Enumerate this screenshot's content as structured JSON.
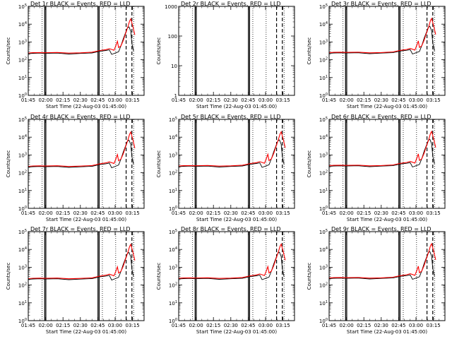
{
  "figure": {
    "time_range": [
      "01:45",
      "03:25"
    ],
    "tick_labels": [
      "01:45",
      "02:00",
      "02:15",
      "02:30",
      "02:45",
      "03:00",
      "03:15"
    ],
    "tick_minutes": [
      0,
      15,
      30,
      45,
      60,
      75,
      90
    ],
    "solid_lines_min": [
      14.2,
      15.2,
      60.2,
      61.2
    ],
    "dotted_lines_min": [
      12,
      64,
      75.5,
      91
    ],
    "dashed_lines_min": [
      84.5,
      89.5
    ],
    "colors": {
      "events": "#000000",
      "lld": "#ff0000",
      "axis": "#000000"
    }
  },
  "chart_data": [
    {
      "type": "line",
      "title": "Det 1r BLACK = Events, RED = LLD",
      "xlabel": "Start Time (22-Aug-03 01:45:00)",
      "ylabel": "Counts/sec",
      "scale": "log",
      "ylim": [
        1,
        100000
      ],
      "y_tick_labels": [
        "10^0",
        "10^1",
        "10^2",
        "10^3",
        "10^4",
        "10^5"
      ],
      "series": [
        {
          "name": "Events",
          "color": "#000000",
          "x": [
            0,
            4,
            10,
            14,
            18,
            25,
            35,
            45,
            55,
            62,
            67,
            70,
            72,
            76,
            78,
            80,
            82,
            84.5,
            85.5,
            87,
            88.5,
            89.5,
            91
          ],
          "y": [
            220,
            230,
            235,
            228,
            232,
            236,
            210,
            225,
            240,
            300,
            330,
            360,
            200,
            250,
            280,
            600,
            1500,
            4000,
            6000,
            7000,
            4000,
            800,
            300
          ]
        },
        {
          "name": "LLD",
          "color": "#ff0000",
          "x": [
            0,
            4,
            10,
            14,
            18,
            25,
            35,
            45,
            55,
            62,
            67,
            70,
            72,
            74,
            76,
            77,
            78,
            80,
            82,
            84,
            86,
            87.5,
            88.5,
            90,
            92
          ],
          "y": [
            240,
            250,
            255,
            248,
            252,
            256,
            235,
            245,
            265,
            330,
            370,
            420,
            380,
            340,
            700,
            1100,
            480,
            600,
            1200,
            3000,
            7000,
            15000,
            20000,
            9000,
            2500
          ]
        }
      ]
    },
    {
      "type": "line",
      "title": "Det 2r BLACK = Events, RED = LLD",
      "xlabel": "Start Time (22-Aug-03 01:45:00)",
      "ylabel": "Counts/sec",
      "scale": "log",
      "ylim": [
        1,
        1000
      ],
      "y_tick_labels": [
        "1",
        "10",
        "100",
        "1000"
      ],
      "series": []
    },
    {
      "type": "line",
      "title": "Det 3r BLACK = Events, RED = LLD",
      "xlabel": "Start Time (22-Aug-03 01:45:00)",
      "ylabel": "Counts/sec",
      "scale": "log",
      "ylim": [
        1,
        100000
      ],
      "y_tick_labels": [
        "10^0",
        "10^1",
        "10^2",
        "10^3",
        "10^4",
        "10^5"
      ],
      "series": [
        {
          "name": "Events",
          "color": "#000000",
          "x": [
            0,
            4,
            10,
            14,
            18,
            25,
            35,
            45,
            55,
            62,
            67,
            70,
            72,
            76,
            78,
            80,
            82,
            84.5,
            85.5,
            87,
            88.5,
            89.5,
            91
          ],
          "y": [
            230,
            240,
            245,
            238,
            242,
            246,
            220,
            235,
            250,
            310,
            340,
            370,
            210,
            260,
            290,
            620,
            1600,
            4200,
            6500,
            7500,
            4300,
            850,
            320
          ]
        },
        {
          "name": "LLD",
          "color": "#ff0000",
          "x": [
            0,
            4,
            10,
            14,
            18,
            25,
            35,
            45,
            55,
            62,
            67,
            70,
            72,
            74,
            76,
            77,
            78,
            80,
            82,
            84,
            86,
            87.5,
            88.5,
            90,
            92
          ],
          "y": [
            250,
            260,
            265,
            258,
            262,
            266,
            245,
            255,
            275,
            340,
            380,
            430,
            390,
            350,
            720,
            1150,
            490,
            610,
            1250,
            3100,
            7200,
            16000,
            21000,
            9500,
            2600
          ]
        }
      ]
    },
    {
      "type": "line",
      "title": "Det 4r BLACK = Events, RED = LLD",
      "xlabel": "Start Time (22-Aug-03 01:45:00)",
      "ylabel": "Counts/sec",
      "scale": "log",
      "ylim": [
        1,
        100000
      ],
      "y_tick_labels": [
        "10^0",
        "10^1",
        "10^2",
        "10^3",
        "10^4",
        "10^5"
      ],
      "series": [
        {
          "name": "Events",
          "color": "#000000",
          "x": [
            0,
            4,
            10,
            14,
            18,
            25,
            35,
            45,
            55,
            62,
            67,
            70,
            72,
            76,
            78,
            80,
            82,
            84.5,
            85.5,
            87,
            88.5,
            89.5,
            91
          ],
          "y": [
            210,
            220,
            225,
            218,
            222,
            226,
            200,
            215,
            230,
            290,
            320,
            350,
            190,
            240,
            270,
            580,
            1450,
            3900,
            5800,
            6800,
            3900,
            780,
            290
          ]
        },
        {
          "name": "LLD",
          "color": "#ff0000",
          "x": [
            0,
            4,
            10,
            14,
            18,
            25,
            35,
            45,
            55,
            62,
            67,
            70,
            72,
            74,
            76,
            77,
            78,
            80,
            82,
            84,
            86,
            87.5,
            88.5,
            90,
            92
          ],
          "y": [
            230,
            240,
            245,
            238,
            242,
            246,
            225,
            235,
            255,
            320,
            360,
            410,
            370,
            330,
            680,
            1050,
            470,
            590,
            1150,
            2900,
            6800,
            14500,
            19500,
            8800,
            2400
          ]
        }
      ]
    },
    {
      "type": "line",
      "title": "Det 5r BLACK = Events, RED = LLD",
      "xlabel": "Start Time (22-Aug-03 01:45:00)",
      "ylabel": "Counts/sec",
      "scale": "log",
      "ylim": [
        1,
        100000
      ],
      "y_tick_labels": [
        "10^0",
        "10^1",
        "10^2",
        "10^3",
        "10^4",
        "10^5"
      ],
      "series": [
        {
          "name": "Events",
          "color": "#000000",
          "x": [
            0,
            4,
            10,
            14,
            18,
            25,
            35,
            45,
            55,
            62,
            67,
            70,
            72,
            76,
            78,
            80,
            82,
            84.5,
            85.5,
            87,
            88.5,
            89.5,
            91
          ],
          "y": [
            220,
            230,
            235,
            228,
            232,
            236,
            210,
            225,
            240,
            300,
            330,
            360,
            200,
            250,
            280,
            600,
            1500,
            4000,
            6000,
            7000,
            4000,
            800,
            300
          ]
        },
        {
          "name": "LLD",
          "color": "#ff0000",
          "x": [
            0,
            4,
            10,
            14,
            18,
            25,
            35,
            45,
            55,
            62,
            67,
            70,
            72,
            74,
            76,
            77,
            78,
            80,
            82,
            84,
            86,
            87.5,
            88.5,
            90,
            92
          ],
          "y": [
            240,
            250,
            255,
            248,
            252,
            256,
            235,
            245,
            265,
            330,
            370,
            420,
            380,
            340,
            700,
            1100,
            480,
            600,
            1200,
            3000,
            7000,
            15000,
            20000,
            9000,
            2500
          ]
        }
      ]
    },
    {
      "type": "line",
      "title": "Det 6r BLACK = Events, RED = LLD",
      "xlabel": "Start Time (22-Aug-03 01:45:00)",
      "ylabel": "Counts/sec",
      "scale": "log",
      "ylim": [
        1,
        100000
      ],
      "y_tick_labels": [
        "10^0",
        "10^1",
        "10^2",
        "10^3",
        "10^4",
        "10^5"
      ],
      "series": [
        {
          "name": "Events",
          "color": "#000000",
          "x": [
            0,
            4,
            10,
            14,
            18,
            25,
            35,
            45,
            55,
            62,
            67,
            70,
            72,
            76,
            78,
            80,
            82,
            84.5,
            85.5,
            87,
            88.5,
            89.5,
            91
          ],
          "y": [
            230,
            240,
            245,
            238,
            242,
            246,
            220,
            235,
            250,
            310,
            340,
            370,
            210,
            260,
            290,
            620,
            1600,
            4200,
            6500,
            7500,
            4300,
            850,
            320
          ]
        },
        {
          "name": "LLD",
          "color": "#ff0000",
          "x": [
            0,
            4,
            10,
            14,
            18,
            25,
            35,
            45,
            55,
            62,
            67,
            70,
            72,
            74,
            76,
            77,
            78,
            80,
            82,
            84,
            86,
            87.5,
            88.5,
            90,
            92
          ],
          "y": [
            250,
            260,
            265,
            258,
            262,
            266,
            245,
            255,
            275,
            340,
            380,
            430,
            390,
            350,
            720,
            1150,
            490,
            610,
            1250,
            3100,
            7200,
            16000,
            21000,
            9500,
            2600
          ]
        }
      ]
    },
    {
      "type": "line",
      "title": "Det 7r BLACK = Events, RED = LLD",
      "xlabel": "Start Time (22-Aug-03 01:45:00)",
      "ylabel": "Counts/sec",
      "scale": "log",
      "ylim": [
        1,
        100000
      ],
      "y_tick_labels": [
        "10^0",
        "10^1",
        "10^2",
        "10^3",
        "10^4",
        "10^5"
      ],
      "series": [
        {
          "name": "Events",
          "color": "#000000",
          "x": [
            0,
            4,
            10,
            14,
            18,
            25,
            35,
            45,
            55,
            62,
            67,
            70,
            72,
            76,
            78,
            80,
            82,
            84.5,
            85.5,
            87,
            88.5,
            89.5,
            91
          ],
          "y": [
            210,
            220,
            225,
            218,
            222,
            226,
            200,
            215,
            230,
            290,
            320,
            350,
            190,
            240,
            270,
            580,
            1450,
            3900,
            5800,
            6800,
            3900,
            780,
            290
          ]
        },
        {
          "name": "LLD",
          "color": "#ff0000",
          "x": [
            0,
            4,
            10,
            14,
            18,
            25,
            35,
            45,
            55,
            62,
            67,
            70,
            72,
            74,
            76,
            77,
            78,
            80,
            82,
            84,
            86,
            87.5,
            88.5,
            90,
            92
          ],
          "y": [
            230,
            240,
            245,
            238,
            242,
            246,
            225,
            235,
            255,
            320,
            360,
            410,
            370,
            330,
            680,
            1050,
            470,
            590,
            1150,
            2900,
            6800,
            14500,
            19500,
            8800,
            2400
          ]
        }
      ]
    },
    {
      "type": "line",
      "title": "Det 8r BLACK = Events, RED = LLD",
      "xlabel": "Start Time (22-Aug-03 01:45:00)",
      "ylabel": "Counts/sec",
      "scale": "log",
      "ylim": [
        1,
        100000
      ],
      "y_tick_labels": [
        "10^0",
        "10^1",
        "10^2",
        "10^3",
        "10^4",
        "10^5"
      ],
      "series": [
        {
          "name": "Events",
          "color": "#000000",
          "x": [
            0,
            4,
            10,
            14,
            18,
            25,
            35,
            45,
            55,
            62,
            67,
            70,
            72,
            76,
            78,
            80,
            82,
            84.5,
            85.5,
            87,
            88.5,
            89.5,
            91
          ],
          "y": [
            220,
            230,
            235,
            228,
            232,
            236,
            210,
            225,
            240,
            300,
            330,
            360,
            200,
            250,
            280,
            600,
            1500,
            4000,
            6000,
            7000,
            4000,
            800,
            300
          ]
        },
        {
          "name": "LLD",
          "color": "#ff0000",
          "x": [
            0,
            4,
            10,
            14,
            18,
            25,
            35,
            45,
            55,
            62,
            67,
            70,
            72,
            74,
            76,
            77,
            78,
            80,
            82,
            84,
            86,
            87.5,
            88.5,
            90,
            92
          ],
          "y": [
            240,
            250,
            255,
            248,
            252,
            256,
            235,
            245,
            265,
            330,
            370,
            420,
            380,
            340,
            700,
            1100,
            480,
            600,
            1200,
            3000,
            7000,
            15000,
            20000,
            9000,
            2500
          ]
        }
      ]
    },
    {
      "type": "line",
      "title": "Det 9r BLACK = Events, RED = LLD",
      "xlabel": "Start Time (22-Aug-03 01:45:00)",
      "ylabel": "Counts/sec",
      "scale": "log",
      "ylim": [
        1,
        100000
      ],
      "y_tick_labels": [
        "10^0",
        "10^1",
        "10^2",
        "10^3",
        "10^4",
        "10^5"
      ],
      "series": [
        {
          "name": "Events",
          "color": "#000000",
          "x": [
            0,
            4,
            10,
            14,
            18,
            25,
            35,
            45,
            55,
            62,
            67,
            70,
            72,
            76,
            78,
            80,
            82,
            84.5,
            85.5,
            87,
            88.5,
            89.5,
            91
          ],
          "y": [
            230,
            240,
            245,
            238,
            242,
            246,
            220,
            235,
            250,
            310,
            340,
            370,
            210,
            260,
            290,
            620,
            1600,
            4200,
            6500,
            7500,
            4300,
            850,
            320
          ]
        },
        {
          "name": "LLD",
          "color": "#ff0000",
          "x": [
            0,
            4,
            10,
            14,
            18,
            25,
            35,
            45,
            55,
            62,
            67,
            70,
            72,
            74,
            76,
            77,
            78,
            80,
            82,
            84,
            86,
            87.5,
            88.5,
            90,
            92
          ],
          "y": [
            250,
            260,
            265,
            258,
            262,
            266,
            245,
            255,
            275,
            340,
            380,
            430,
            390,
            350,
            720,
            1150,
            490,
            610,
            1250,
            3100,
            7200,
            16000,
            21000,
            9500,
            2600
          ]
        }
      ]
    }
  ]
}
